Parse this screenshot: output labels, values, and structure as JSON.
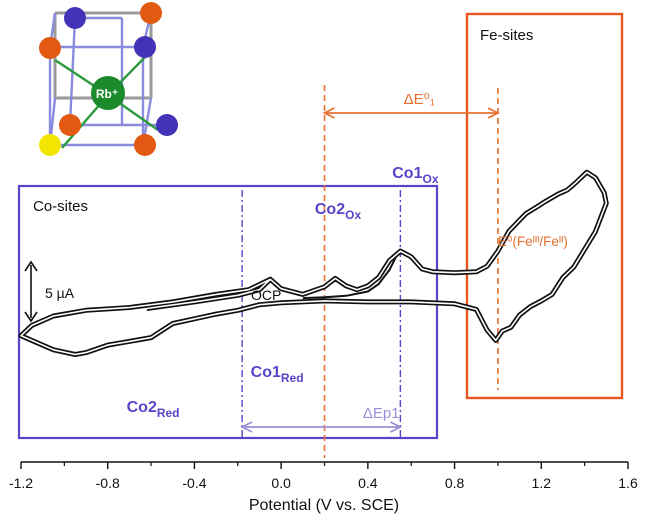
{
  "chart_data": {
    "type": "line",
    "xlabel": "Potential (V vs. SCE)",
    "xlim": [
      -1.2,
      1.6
    ],
    "x_ticks": [
      -1.2,
      -0.8,
      -0.4,
      0.0,
      0.4,
      0.8,
      1.2,
      1.6
    ],
    "x_tick_labels": [
      "-1.2",
      "-0.8",
      "-0.4",
      "0.0",
      "0.4",
      "0.8",
      "1.2",
      "1.6"
    ],
    "current_units": "µA",
    "current_scale_bar": {
      "value": 5,
      "label": "5 µA"
    },
    "series": [
      {
        "points": [
          [
            -0.62,
            -0.9
          ],
          [
            -0.4,
            -0.2
          ],
          [
            -0.2,
            0.5
          ],
          [
            -0.1,
            1.1
          ],
          [
            -0.05,
            2.2
          ],
          [
            0.0,
            1.2
          ],
          [
            0.1,
            0.6
          ],
          [
            0.2,
            1.4
          ],
          [
            0.25,
            2.3
          ],
          [
            0.3,
            1.5
          ],
          [
            0.35,
            1.1
          ],
          [
            0.4,
            1.5
          ],
          [
            0.45,
            2.4
          ],
          [
            0.5,
            4.2
          ],
          [
            0.55,
            5.2
          ],
          [
            0.6,
            4.6
          ],
          [
            0.65,
            3.3
          ],
          [
            0.7,
            3.0
          ],
          [
            0.8,
            2.9
          ],
          [
            0.9,
            3.0
          ],
          [
            0.95,
            3.6
          ],
          [
            1.0,
            5.2
          ],
          [
            1.05,
            7.3
          ],
          [
            1.1,
            8.5
          ],
          [
            1.13,
            9.2
          ],
          [
            1.18,
            9.9
          ],
          [
            1.22,
            10.5
          ],
          [
            1.28,
            11.3
          ],
          [
            1.32,
            11.7
          ],
          [
            1.36,
            12.5
          ],
          [
            1.41,
            13.6
          ],
          [
            1.45,
            13.0
          ],
          [
            1.49,
            11.4
          ],
          [
            1.5,
            10.3
          ],
          [
            1.45,
            7.3
          ],
          [
            1.35,
            3.5
          ],
          [
            1.3,
            2.4
          ],
          [
            1.25,
            0.6
          ],
          [
            1.2,
            -0.1
          ],
          [
            1.15,
            -0.7
          ],
          [
            1.1,
            -1.6
          ],
          [
            1.06,
            -2.9
          ],
          [
            1.02,
            -3.3
          ],
          [
            0.99,
            -4.3
          ],
          [
            0.95,
            -3.2
          ],
          [
            0.9,
            -1.0
          ],
          [
            0.8,
            -0.4
          ],
          [
            0.6,
            -0.2
          ],
          [
            0.4,
            -0.2
          ],
          [
            0.2,
            -0.1
          ],
          [
            0.0,
            -0.3
          ],
          [
            -0.1,
            -0.5
          ],
          [
            -0.2,
            -1.1
          ],
          [
            -0.3,
            -1.5
          ],
          [
            -0.4,
            -2.0
          ],
          [
            -0.5,
            -2.5
          ],
          [
            -0.6,
            -4.0
          ],
          [
            -0.7,
            -4.4
          ],
          [
            -0.8,
            -4.8
          ],
          [
            -0.9,
            -5.6
          ],
          [
            -0.95,
            -5.8
          ],
          [
            -1.05,
            -5.3
          ],
          [
            -1.15,
            -4.3
          ],
          [
            -1.2,
            -3.8
          ],
          [
            -1.15,
            -2.7
          ],
          [
            -1.05,
            -1.7
          ],
          [
            -0.9,
            -1.1
          ],
          [
            -0.7,
            -0.8
          ],
          [
            -0.5,
            -0.2
          ],
          [
            -0.3,
            0.6
          ],
          [
            -0.15,
            1.1
          ],
          [
            -0.05,
            2.2
          ],
          [
            0.0,
            1.2
          ],
          [
            0.1,
            0.6
          ],
          [
            0.2,
            1.4
          ],
          [
            0.25,
            2.3
          ],
          [
            0.3,
            1.5
          ],
          [
            0.35,
            1.1
          ],
          [
            0.4,
            1.5
          ],
          [
            0.45,
            2.4
          ],
          [
            0.5,
            4.2
          ],
          [
            0.55,
            5.2
          ]
        ]
      }
    ],
    "ocp_branch": [
      [
        0.1,
        0.2
      ],
      [
        0.2,
        0.3
      ],
      [
        0.3,
        0.45
      ],
      [
        0.4,
        0.9
      ],
      [
        0.45,
        1.7
      ],
      [
        0.5,
        3.2
      ],
      [
        0.53,
        4.6
      ]
    ],
    "annotations": {
      "fe_box_label": "Fe-sites",
      "co_box_label": "Co-sites",
      "co1_ox": {
        "main": "Co1",
        "sub": "Ox",
        "x": 0.55
      },
      "co2_ox": {
        "main": "Co2",
        "sub": "Ox",
        "x": 0.23
      },
      "co1_red": {
        "main": "Co1",
        "sub": "Red",
        "x": -0.18
      },
      "co2_red": {
        "main": "Co2",
        "sub": "Red",
        "x": -0.6
      },
      "ocp": {
        "label": "OCP",
        "x": 0.0
      },
      "e0_fe": {
        "label": "E⁰(Feᴵᴵᴵ/Feᴵᴵ)",
        "x": 1.0
      },
      "delta_e0": {
        "label": "ΔE⁰₁",
        "from": 0.2,
        "to": 1.0
      },
      "delta_ep": {
        "label": "ΔEp1",
        "from": -0.18,
        "to": 0.55
      }
    },
    "colors": {
      "curve": "#111111",
      "co": "#5545c8",
      "fe": "#e87030",
      "fe_box": "#e8571e",
      "co_arrow": "#9a8fd8"
    }
  },
  "inset": {
    "center_ion": "Rb⁺",
    "colors": {
      "orange": "#e25a12",
      "blue": "#4433b8",
      "yellow": "#f2e600",
      "green": "#1a8a2a"
    }
  }
}
